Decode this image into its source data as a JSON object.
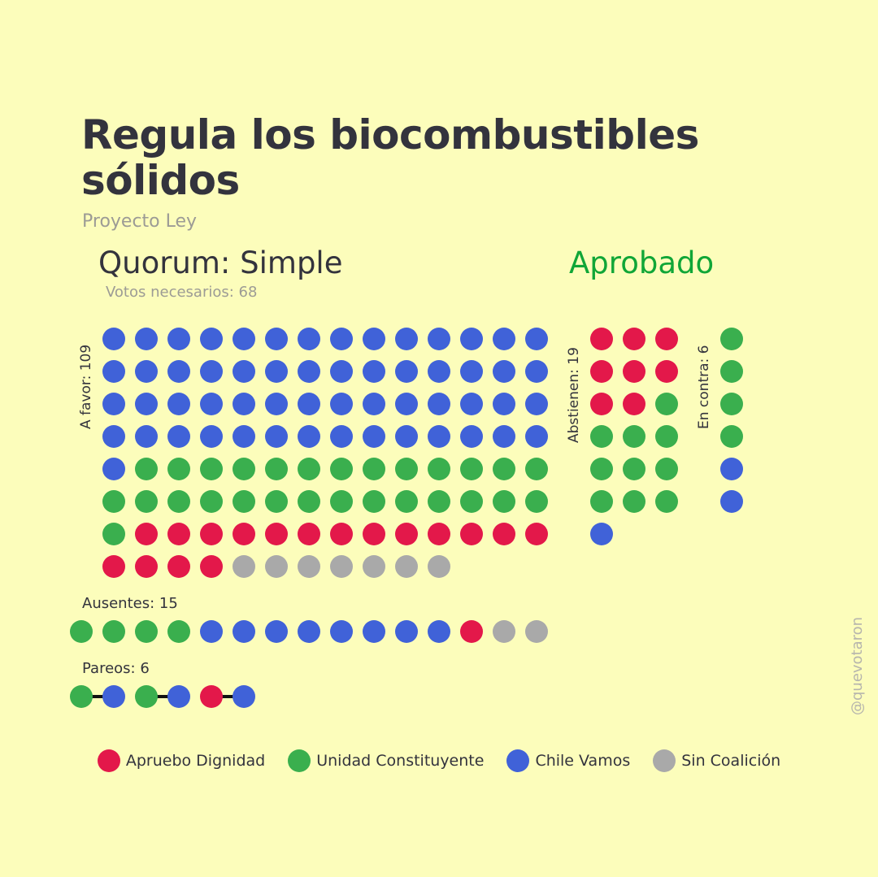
{
  "title": "Regula los biocombustibles sólidos",
  "subtitle": "Proyecto Ley",
  "quorum": "Quorum: Simple",
  "votos_necesarios": "Votos necesarios: 68",
  "result": "Aprobado",
  "watermark": "@quevotaron",
  "colors": {
    "background": "#fcfdbb",
    "Apruebo Dignidad": "#e3184a",
    "Unidad Constituyente": "#3aaf4e",
    "Chile Vamos": "#4062d8",
    "Sin Coalición": "#a9a9a9",
    "result": "#10a637",
    "pair_line": "#111111"
  },
  "chart_data": {
    "type": "waffle",
    "groups": [
      {
        "key": "a_favor",
        "label": "A favor: 109",
        "total": 109,
        "counts": [
          {
            "coalition": "Chile Vamos",
            "n": 57
          },
          {
            "coalition": "Unidad Constituyente",
            "n": 28
          },
          {
            "coalition": "Apruebo Dignidad",
            "n": 17
          },
          {
            "coalition": "Sin Coalición",
            "n": 7
          }
        ]
      },
      {
        "key": "abstienen",
        "label": "Abstienen: 19",
        "total": 19,
        "counts": [
          {
            "coalition": "Apruebo Dignidad",
            "n": 8
          },
          {
            "coalition": "Unidad Constituyente",
            "n": 10
          },
          {
            "coalition": "Chile Vamos",
            "n": 1
          }
        ]
      },
      {
        "key": "en_contra",
        "label": "En contra: 6",
        "total": 6,
        "counts": [
          {
            "coalition": "Unidad Constituyente",
            "n": 4
          },
          {
            "coalition": "Chile Vamos",
            "n": 2
          }
        ]
      },
      {
        "key": "ausentes",
        "label": "Ausentes: 15",
        "total": 15,
        "counts": [
          {
            "coalition": "Unidad Constituyente",
            "n": 4
          },
          {
            "coalition": "Chile Vamos",
            "n": 8
          },
          {
            "coalition": "Apruebo Dignidad",
            "n": 1
          },
          {
            "coalition": "Sin Coalición",
            "n": 2
          }
        ]
      },
      {
        "key": "pareos",
        "label": "Pareos: 6",
        "total": 6,
        "pairs": [
          [
            "Unidad Constituyente",
            "Chile Vamos"
          ],
          [
            "Unidad Constituyente",
            "Chile Vamos"
          ],
          [
            "Apruebo Dignidad",
            "Chile Vamos"
          ]
        ]
      }
    ],
    "legend": [
      "Apruebo Dignidad",
      "Unidad Constituyente",
      "Chile Vamos",
      "Sin Coalición"
    ]
  }
}
